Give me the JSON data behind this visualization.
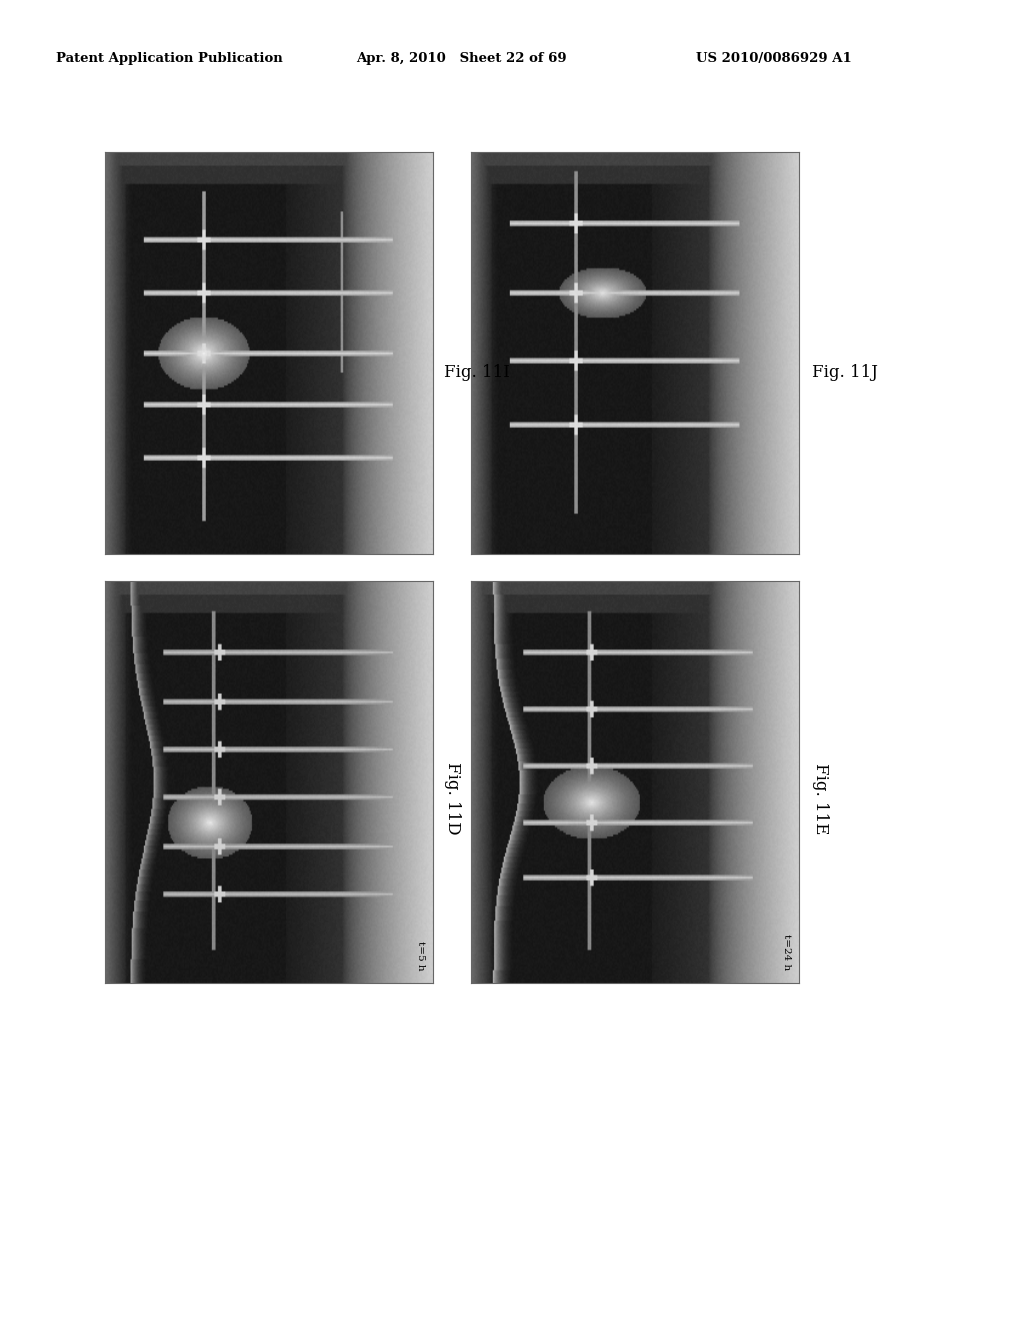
{
  "title_left": "Patent Application Publication",
  "title_center": "Apr. 8, 2010   Sheet 22 of 69",
  "title_right": "US 2010/0086929 A1",
  "fig_labels": [
    "Fig. 11I",
    "Fig. 11J",
    "Fig. 11D",
    "Fig. 11E"
  ],
  "time_label_bl": "t=5 h",
  "time_label_br": "t=24 h",
  "bg_color": "#ffffff",
  "panel_bg": "#1a1a1a"
}
